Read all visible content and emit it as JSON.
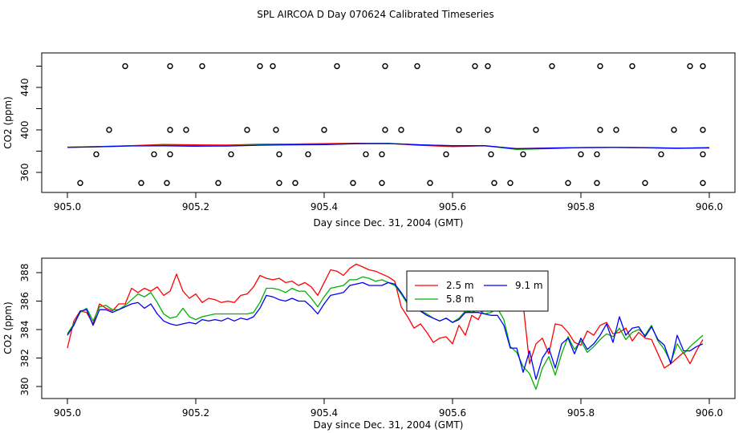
{
  "figure_title": "SPL AIRCOA D  Day 070624  Calibrated Timeseries",
  "chart_data": [
    {
      "type": "scatter+line",
      "xlabel": "Day since Dec. 31, 2004 (GMT)",
      "ylabel": "CO2 (ppm)",
      "xlim": [
        905.0,
        906.0
      ],
      "ylim": [
        350,
        467
      ],
      "xticks": [
        905.0,
        905.2,
        905.4,
        905.6,
        905.8,
        906.0
      ],
      "xtick_labels": [
        "905.0",
        "905.2",
        "905.4",
        "905.6",
        "905.8",
        "906.0"
      ],
      "yticks": [
        360,
        380,
        400,
        420,
        440,
        460
      ],
      "ytick_labels": [
        "360",
        "",
        "400",
        "",
        "440",
        ""
      ],
      "calibration_points": {
        "marker": "open-circle",
        "x": [
          905.09,
          905.16,
          905.21,
          905.3,
          905.32,
          905.42,
          905.495,
          905.545,
          905.635,
          905.655,
          905.755,
          905.83,
          905.88,
          905.97,
          905.99,
          905.065,
          905.16,
          905.185,
          905.28,
          905.325,
          905.4,
          905.495,
          905.52,
          905.61,
          905.655,
          905.73,
          905.83,
          905.855,
          905.945,
          905.99,
          905.045,
          905.135,
          905.16,
          905.255,
          905.33,
          905.375,
          905.465,
          905.49,
          905.59,
          905.66,
          905.71,
          905.8,
          905.825,
          905.925,
          905.99,
          905.02,
          905.115,
          905.155,
          905.235,
          905.33,
          905.355,
          905.445,
          905.49,
          905.565,
          905.665,
          905.69,
          905.78,
          905.825,
          905.9,
          905.99
        ],
        "y": [
          460,
          460,
          460,
          460,
          460,
          460,
          460,
          460,
          460,
          460,
          460,
          460,
          460,
          460,
          460,
          400,
          400,
          400,
          400,
          400,
          400,
          400,
          400,
          400,
          400,
          400,
          400,
          400,
          400,
          400,
          377,
          377,
          377,
          377,
          377,
          377,
          377,
          377,
          377,
          377,
          377,
          377,
          377,
          377,
          377,
          350,
          350,
          350,
          350,
          350,
          350,
          350,
          350,
          350,
          350,
          350,
          350,
          350,
          350,
          350
        ]
      },
      "series": [
        {
          "name": "2.5 m",
          "color": "#ff0000",
          "x": [
            905.0,
            905.05,
            905.1,
            905.15,
            905.2,
            905.25,
            905.3,
            905.35,
            905.4,
            905.45,
            905.5,
            905.55,
            905.6,
            905.65,
            905.7,
            905.75,
            905.8,
            905.85,
            905.9,
            905.95,
            906.0
          ],
          "y": [
            383.8,
            384.4,
            385.2,
            386.3,
            385.9,
            385.7,
            386.5,
            386.7,
            387.0,
            387.4,
            387.2,
            385.5,
            384.2,
            385.0,
            382.4,
            383.0,
            383.4,
            383.6,
            383.2,
            382.6,
            383.4
          ]
        },
        {
          "name": "5.8 m",
          "color": "#00b000",
          "x": [
            905.0,
            905.05,
            905.1,
            905.15,
            905.2,
            905.25,
            905.3,
            905.35,
            905.4,
            905.45,
            905.5,
            905.55,
            905.6,
            905.65,
            905.7,
            905.75,
            905.8,
            905.85,
            905.9,
            905.95,
            906.0
          ],
          "y": [
            383.6,
            384.2,
            385.0,
            385.4,
            385.2,
            385.2,
            385.9,
            386.4,
            386.3,
            387.2,
            387.3,
            386.0,
            385.0,
            385.2,
            381.6,
            382.4,
            383.4,
            383.5,
            383.3,
            382.7,
            383.5
          ]
        },
        {
          "name": "9.1 m",
          "color": "#0000ff",
          "x": [
            905.0,
            905.05,
            905.1,
            905.15,
            905.2,
            905.25,
            905.3,
            905.35,
            905.4,
            905.45,
            905.5,
            905.55,
            905.6,
            905.65,
            905.7,
            905.75,
            905.8,
            905.85,
            905.9,
            905.95,
            906.0
          ],
          "y": [
            383.5,
            384.1,
            384.9,
            385.0,
            384.7,
            384.8,
            385.6,
            386.0,
            386.2,
            387.0,
            387.2,
            386.0,
            385.1,
            385.1,
            382.3,
            382.8,
            383.3,
            383.5,
            383.4,
            382.8,
            383.0
          ]
        }
      ]
    },
    {
      "type": "line",
      "xlabel": "Day since Dec. 31, 2004 (GMT)",
      "ylabel": "CO2 (ppm)",
      "xlim": [
        905.0,
        906.0
      ],
      "ylim": [
        379.6,
        388.7
      ],
      "xticks": [
        905.0,
        905.2,
        905.4,
        905.6,
        905.8,
        906.0
      ],
      "xtick_labels": [
        "905.0",
        "905.2",
        "905.4",
        "905.6",
        "905.8",
        "906.0"
      ],
      "yticks": [
        380,
        382,
        384,
        386,
        388
      ],
      "ytick_labels": [
        "380",
        "382",
        "384",
        "386",
        "388"
      ],
      "legend": {
        "position": "top-center",
        "entries": [
          "2.5 m",
          "5.8 m",
          "9.1 m"
        ]
      },
      "series": [
        {
          "name": "2.5 m",
          "color": "#ff0000",
          "x": [
            905.0,
            905.01,
            905.02,
            905.03,
            905.04,
            905.05,
            905.06,
            905.07,
            905.08,
            905.09,
            905.1,
            905.11,
            905.12,
            905.13,
            905.14,
            905.15,
            905.16,
            905.17,
            905.18,
            905.19,
            905.2,
            905.21,
            905.22,
            905.23,
            905.24,
            905.25,
            905.26,
            905.27,
            905.28,
            905.29,
            905.3,
            905.31,
            905.32,
            905.33,
            905.34,
            905.35,
            905.36,
            905.37,
            905.38,
            905.39,
            905.4,
            905.41,
            905.42,
            905.43,
            905.44,
            905.45,
            905.46,
            905.47,
            905.48,
            905.49,
            905.5,
            905.51,
            905.52,
            905.53,
            905.54,
            905.55,
            905.56,
            905.57,
            905.58,
            905.59,
            905.6,
            905.61,
            905.62,
            905.63,
            905.64,
            905.65,
            905.66,
            905.67,
            905.68,
            905.69,
            905.7,
            905.71,
            905.72,
            905.73,
            905.74,
            905.75,
            905.76,
            905.77,
            905.78,
            905.79,
            905.8,
            905.81,
            905.82,
            905.83,
            905.84,
            905.85,
            905.86,
            905.87,
            905.88,
            905.89,
            905.9,
            905.91,
            905.92,
            905.93,
            905.94,
            905.95,
            905.96,
            905.97,
            905.98,
            905.99
          ],
          "y": [
            382.7,
            384.6,
            385.3,
            385.2,
            384.4,
            385.8,
            385.5,
            385.3,
            385.8,
            385.8,
            386.9,
            386.6,
            386.9,
            386.7,
            387.0,
            386.4,
            386.7,
            387.9,
            386.7,
            386.2,
            386.5,
            385.9,
            386.2,
            386.1,
            385.9,
            386.0,
            385.9,
            386.4,
            386.5,
            387.0,
            387.8,
            387.6,
            387.5,
            387.6,
            387.3,
            387.4,
            387.1,
            387.3,
            387.0,
            386.4,
            387.3,
            388.2,
            388.1,
            387.8,
            388.3,
            388.6,
            388.4,
            388.2,
            388.1,
            387.9,
            387.7,
            387.4,
            385.6,
            384.9,
            384.1,
            384.4,
            383.8,
            383.1,
            383.4,
            383.5,
            383.0,
            384.3,
            383.6,
            385.0,
            384.7,
            385.6,
            385.3,
            386.7,
            385.8,
            385.7,
            385.6,
            385.8,
            381.6,
            383.0,
            383.4,
            382.3,
            384.4,
            384.3,
            383.8,
            383.1,
            382.9,
            383.9,
            383.6,
            384.3,
            384.5,
            383.7,
            383.8,
            384.1,
            383.2,
            383.8,
            383.4,
            383.3,
            382.3,
            381.3,
            381.6,
            382.0,
            382.4,
            381.6,
            382.5,
            383.3
          ]
        },
        {
          "name": "5.8 m",
          "color": "#00b000",
          "x": [
            905.0,
            905.01,
            905.02,
            905.03,
            905.04,
            905.05,
            905.06,
            905.07,
            905.08,
            905.09,
            905.1,
            905.11,
            905.12,
            905.13,
            905.14,
            905.15,
            905.16,
            905.17,
            905.18,
            905.19,
            905.2,
            905.21,
            905.22,
            905.23,
            905.24,
            905.25,
            905.26,
            905.27,
            905.28,
            905.29,
            905.3,
            905.31,
            905.32,
            905.33,
            905.34,
            905.35,
            905.36,
            905.37,
            905.38,
            905.39,
            905.4,
            905.41,
            905.42,
            905.43,
            905.44,
            905.45,
            905.46,
            905.47,
            905.48,
            905.49,
            905.5,
            905.51,
            905.52,
            905.53,
            905.54,
            905.55,
            905.56,
            905.57,
            905.58,
            905.59,
            905.6,
            905.61,
            905.62,
            905.63,
            905.64,
            905.65,
            905.66,
            905.67,
            905.68,
            905.69,
            905.7,
            905.71,
            905.72,
            905.73,
            905.74,
            905.75,
            905.76,
            905.77,
            905.78,
            905.79,
            905.8,
            905.81,
            905.82,
            905.83,
            905.84,
            905.85,
            905.86,
            905.87,
            905.88,
            905.89,
            905.9,
            905.91,
            905.92,
            905.93,
            905.94,
            905.95,
            905.96,
            905.97,
            905.98,
            905.99
          ],
          "y": [
            383.7,
            384.4,
            385.2,
            385.5,
            384.6,
            385.6,
            385.7,
            385.4,
            385.4,
            385.7,
            386.1,
            386.5,
            386.3,
            386.6,
            385.9,
            385.1,
            384.8,
            384.9,
            385.5,
            384.9,
            384.7,
            384.9,
            385.0,
            385.1,
            385.1,
            385.1,
            385.1,
            385.1,
            385.1,
            385.2,
            385.9,
            386.9,
            386.9,
            386.8,
            386.6,
            386.9,
            386.7,
            386.7,
            386.2,
            385.6,
            386.3,
            386.9,
            387.0,
            387.1,
            387.5,
            387.5,
            387.7,
            387.6,
            387.4,
            387.5,
            387.3,
            387.1,
            386.5,
            385.8,
            385.5,
            385.3,
            385.1,
            384.8,
            384.6,
            384.8,
            384.5,
            384.8,
            385.3,
            385.2,
            385.4,
            385.1,
            385.2,
            385.5,
            384.7,
            382.8,
            382.4,
            381.4,
            380.9,
            379.8,
            381.3,
            382.1,
            380.8,
            382.3,
            383.5,
            382.6,
            383.2,
            382.4,
            382.8,
            383.3,
            383.7,
            383.5,
            384.1,
            383.3,
            383.8,
            384.0,
            383.6,
            384.3,
            383.2,
            382.6,
            381.7,
            383.0,
            382.3,
            382.8,
            383.2,
            383.6
          ]
        },
        {
          "name": "9.1 m",
          "color": "#0000ff",
          "x": [
            905.0,
            905.01,
            905.02,
            905.03,
            905.04,
            905.05,
            905.06,
            905.07,
            905.08,
            905.09,
            905.1,
            905.11,
            905.12,
            905.13,
            905.14,
            905.15,
            905.16,
            905.17,
            905.18,
            905.19,
            905.2,
            905.21,
            905.22,
            905.23,
            905.24,
            905.25,
            905.26,
            905.27,
            905.28,
            905.29,
            905.3,
            905.31,
            905.32,
            905.33,
            905.34,
            905.35,
            905.36,
            905.37,
            905.38,
            905.39,
            905.4,
            905.41,
            905.42,
            905.43,
            905.44,
            905.45,
            905.46,
            905.47,
            905.48,
            905.49,
            905.5,
            905.51,
            905.52,
            905.53,
            905.54,
            905.55,
            905.56,
            905.57,
            905.58,
            905.59,
            905.6,
            905.61,
            905.62,
            905.63,
            905.64,
            905.65,
            905.66,
            905.67,
            905.68,
            905.69,
            905.7,
            905.71,
            905.72,
            905.73,
            905.74,
            905.75,
            905.76,
            905.77,
            905.78,
            905.79,
            905.8,
            905.81,
            905.82,
            905.83,
            905.84,
            905.85,
            905.86,
            905.87,
            905.88,
            905.89,
            905.9,
            905.91,
            905.92,
            905.93,
            905.94,
            905.95,
            905.96,
            905.97,
            905.98,
            905.99
          ],
          "y": [
            383.6,
            384.3,
            385.3,
            385.4,
            384.3,
            385.4,
            385.4,
            385.2,
            385.4,
            385.6,
            385.8,
            385.9,
            385.5,
            385.8,
            385.1,
            384.6,
            384.4,
            384.3,
            384.4,
            384.5,
            384.4,
            384.7,
            384.6,
            384.7,
            384.6,
            384.8,
            384.6,
            384.8,
            384.7,
            384.9,
            385.5,
            386.4,
            386.3,
            386.1,
            386.0,
            386.2,
            386.0,
            386.0,
            385.6,
            385.1,
            385.8,
            386.4,
            386.5,
            386.6,
            387.1,
            387.2,
            387.3,
            387.1,
            387.1,
            387.1,
            387.3,
            387.2,
            386.6,
            385.9,
            385.6,
            385.3,
            385.0,
            384.8,
            384.6,
            384.8,
            384.5,
            384.7,
            385.2,
            385.2,
            385.2,
            385.1,
            385.0,
            385.0,
            384.3,
            382.7,
            382.7,
            381.0,
            382.5,
            380.5,
            382.0,
            382.7,
            381.3,
            383.0,
            383.4,
            382.3,
            383.4,
            382.6,
            383.0,
            383.6,
            384.4,
            383.1,
            384.9,
            383.6,
            384.1,
            384.2,
            383.5,
            384.2,
            383.3,
            382.9,
            381.6,
            383.6,
            382.5,
            382.5,
            382.8,
            383.0
          ]
        }
      ]
    }
  ]
}
